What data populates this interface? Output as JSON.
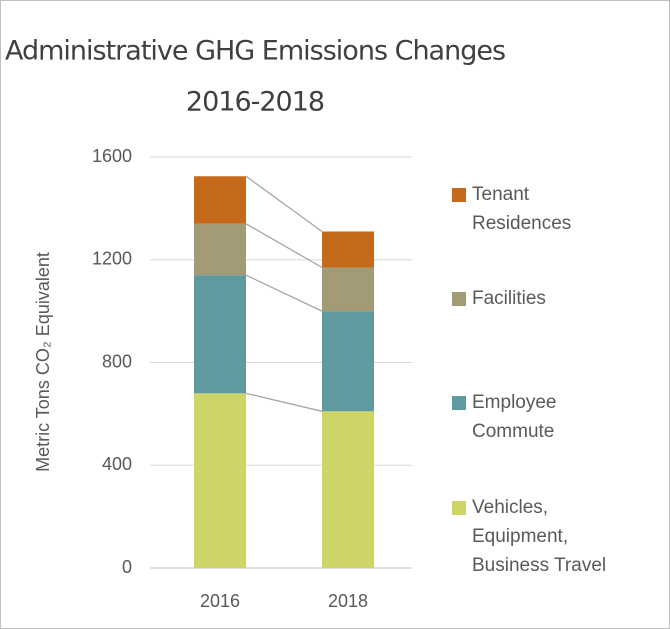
{
  "chart_data": {
    "type": "stacked-bar",
    "title": [
      "Administrative GHG Emissions Changes",
      "2016-2018"
    ],
    "ylabel": "Metric Tons CO₂ Equivalent",
    "categories": [
      "2016",
      "2018"
    ],
    "series": [
      {
        "name": "Vehicles, Equipment, Business Travel",
        "color": "#cfd467",
        "values": [
          680,
          610
        ]
      },
      {
        "name": "Employee Commute",
        "color": "#5f9aa0",
        "values": [
          460,
          390
        ]
      },
      {
        "name": "Facilities",
        "color": "#a39b75",
        "values": [
          200,
          170
        ]
      },
      {
        "name": "Tenant Residences",
        "color": "#c5691a",
        "values": [
          185,
          140
        ]
      }
    ],
    "ylim": [
      0,
      1600
    ],
    "yticks": [
      0,
      400,
      800,
      1200,
      1600
    ],
    "grid": true,
    "legend": "right"
  }
}
